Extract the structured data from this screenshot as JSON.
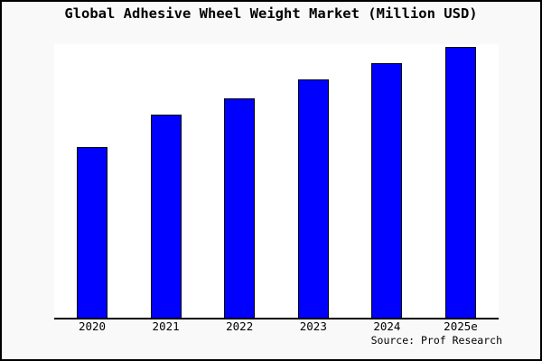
{
  "chart_data": {
    "type": "bar",
    "title": "Global Adhesive Wheel Weight Market (Million USD)",
    "categories": [
      "2020",
      "2021",
      "2022",
      "2023",
      "2024",
      "2025e"
    ],
    "values": [
      63,
      75,
      81,
      88,
      94,
      100
    ],
    "values_note": "relative scale estimated from bar heights; no y-axis tick labels are shown, tallest bar (2025e) = 100",
    "xlabel": "",
    "ylabel": "",
    "ylim": [
      0,
      100
    ],
    "grid": false,
    "y_axis_shown": false,
    "legend": null
  },
  "source": "Source: Prof Research",
  "colors": {
    "bar_fill": "#0000ff",
    "bar_edge": "#000000",
    "canvas_background": "#f9f9f9",
    "plot_background": "#ffffff",
    "axis_line": "#000000",
    "frame_border": "#000000",
    "text": "#000000"
  }
}
